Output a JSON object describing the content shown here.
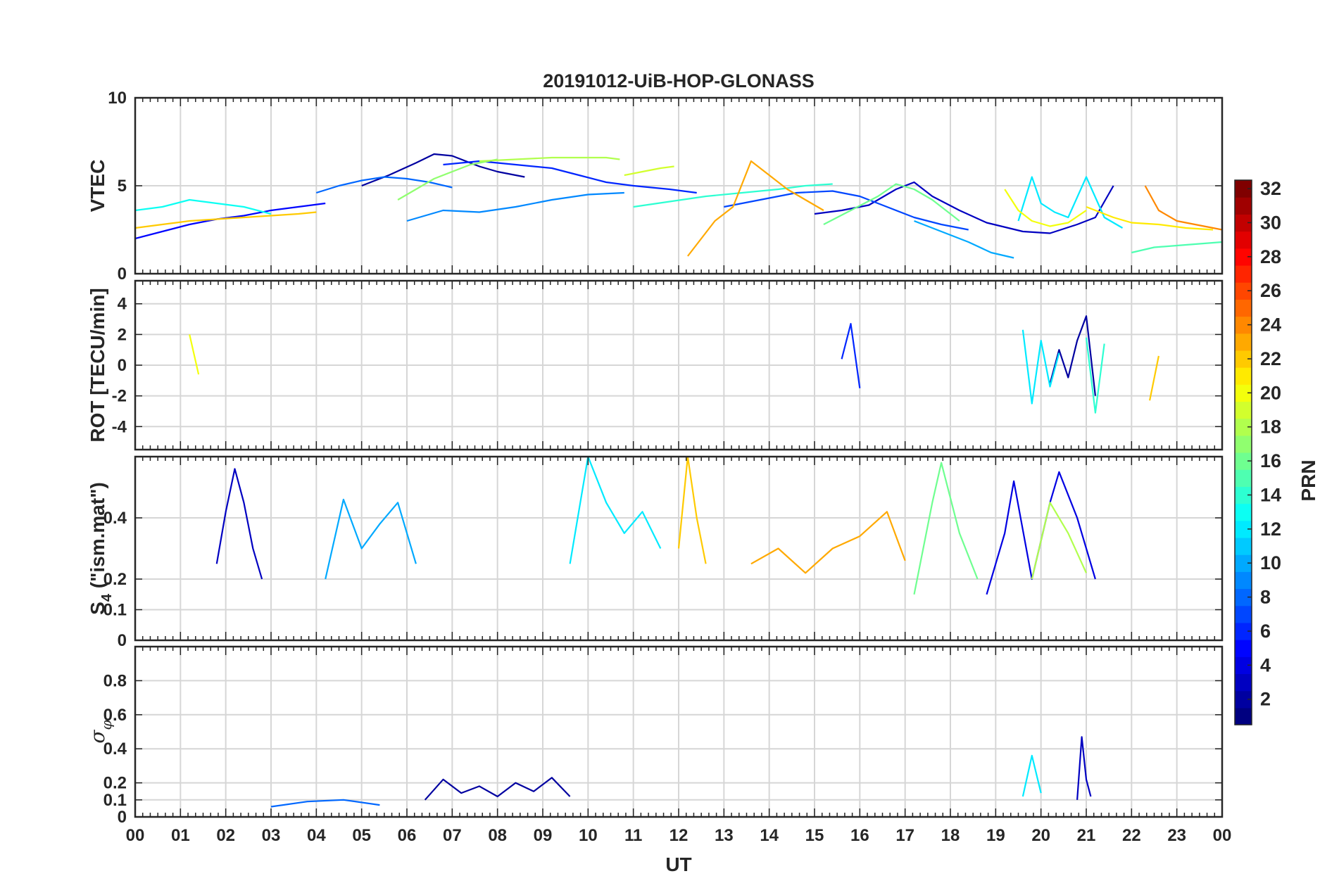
{
  "chart_data": {
    "type": "line",
    "title": "20191012-UiB-HOP-GLONASS",
    "xlabel": "UT",
    "xticks": [
      "00",
      "01",
      "02",
      "03",
      "04",
      "05",
      "06",
      "07",
      "08",
      "09",
      "10",
      "11",
      "12",
      "13",
      "14",
      "15",
      "16",
      "17",
      "18",
      "19",
      "20",
      "21",
      "22",
      "23",
      "00"
    ],
    "xlim": [
      0,
      24
    ],
    "grid": true,
    "legend": "none",
    "note": "Traces are colored by satellite PRN (colorbar, jet colormap). Series values below are approximate readings.",
    "colorbar": {
      "label": "PRN",
      "range": [
        1,
        32
      ],
      "ticks": [
        "2",
        "4",
        "6",
        "8",
        "10",
        "12",
        "14",
        "16",
        "18",
        "20",
        "22",
        "24",
        "26",
        "28",
        "30",
        "32"
      ],
      "colormap": "jet"
    },
    "panels": [
      {
        "name": "vtec",
        "ylabel": "VTEC",
        "ylim": [
          0,
          10
        ],
        "yticks": [
          "0",
          "5",
          "10"
        ],
        "series": [
          {
            "prn": 2,
            "x": [
              5.0,
              5.6,
              6.2,
              6.6,
              7.0,
              7.6,
              8.0,
              8.6
            ],
            "y": [
              5.0,
              5.6,
              6.3,
              6.8,
              6.7,
              6.1,
              5.8,
              5.5
            ]
          },
          {
            "prn": 3,
            "x": [
              15.0,
              15.6,
              16.2,
              16.8,
              17.2,
              17.6,
              18.2,
              18.8,
              19.6,
              20.2,
              20.8,
              21.2,
              21.6
            ],
            "y": [
              3.4,
              3.6,
              3.9,
              4.8,
              5.2,
              4.4,
              3.6,
              2.9,
              2.4,
              2.3,
              2.8,
              3.2,
              5.0
            ]
          },
          {
            "prn": 5,
            "x": [
              0.0,
              0.6,
              1.2,
              1.8,
              2.4,
              3.0,
              3.6,
              4.2
            ],
            "y": [
              2.0,
              2.4,
              2.8,
              3.1,
              3.3,
              3.6,
              3.8,
              4.0
            ]
          },
          {
            "prn": 6,
            "x": [
              6.8,
              7.6,
              8.4,
              9.2,
              9.8,
              10.4,
              11.0,
              11.8,
              12.4
            ],
            "y": [
              6.2,
              6.4,
              6.2,
              6.0,
              5.6,
              5.2,
              5.0,
              4.8,
              4.6
            ]
          },
          {
            "prn": 7,
            "x": [
              13.0,
              13.8,
              14.6,
              15.4,
              16.0,
              16.6,
              17.2,
              17.8,
              18.4
            ],
            "y": [
              3.8,
              4.2,
              4.6,
              4.7,
              4.4,
              3.8,
              3.2,
              2.8,
              2.5
            ]
          },
          {
            "prn": 8,
            "x": [
              4.0,
              4.5,
              5.0,
              5.5,
              6.0,
              6.5,
              7.0
            ],
            "y": [
              4.6,
              5.0,
              5.3,
              5.5,
              5.4,
              5.2,
              4.9
            ]
          },
          {
            "prn": 9,
            "x": [
              6.0,
              6.8,
              7.6,
              8.4,
              9.2,
              10.0,
              10.8
            ],
            "y": [
              3.0,
              3.6,
              3.5,
              3.8,
              4.2,
              4.5,
              4.6
            ]
          },
          {
            "prn": 10,
            "x": [
              17.2,
              17.8,
              18.4,
              18.9,
              19.4
            ],
            "y": [
              3.0,
              2.4,
              1.8,
              1.2,
              0.9
            ]
          },
          {
            "prn": 12,
            "x": [
              19.5,
              19.8,
              20.0,
              20.3,
              20.6,
              21.0,
              21.4,
              21.8
            ],
            "y": [
              3.0,
              5.5,
              4.0,
              3.5,
              3.2,
              5.5,
              3.2,
              2.6
            ]
          },
          {
            "prn": 13,
            "x": [
              0.0,
              0.6,
              1.2,
              1.8,
              2.4,
              3.0
            ],
            "y": [
              3.6,
              3.8,
              4.2,
              4.0,
              3.8,
              3.4
            ]
          },
          {
            "prn": 14,
            "x": [
              11.0,
              11.8,
              12.6,
              13.4,
              14.2,
              14.8,
              15.4
            ],
            "y": [
              3.8,
              4.1,
              4.4,
              4.6,
              4.8,
              5.0,
              5.1
            ]
          },
          {
            "prn": 15,
            "x": [
              22.0,
              22.5,
              23.0,
              23.5,
              24.0
            ],
            "y": [
              1.2,
              1.5,
              1.6,
              1.7,
              1.8
            ]
          },
          {
            "prn": 16,
            "x": [
              15.2,
              15.8,
              16.4,
              16.8,
              17.2,
              17.6,
              18.2
            ],
            "y": [
              2.8,
              3.6,
              4.4,
              5.1,
              4.8,
              4.2,
              3.0
            ]
          },
          {
            "prn": 17,
            "x": [
              5.8,
              6.2,
              6.6,
              7.0,
              7.4,
              8.0
            ],
            "y": [
              4.2,
              4.8,
              5.4,
              5.8,
              6.2,
              6.5
            ]
          },
          {
            "prn": 18,
            "x": [
              7.6,
              8.4,
              9.2,
              9.8,
              10.4,
              10.7
            ],
            "y": [
              6.4,
              6.5,
              6.6,
              6.6,
              6.6,
              6.5
            ]
          },
          {
            "prn": 19,
            "x": [
              10.8,
              11.2,
              11.6,
              11.9
            ],
            "y": [
              5.6,
              5.8,
              6.0,
              6.1
            ]
          },
          {
            "prn": 20,
            "x": [
              19.2,
              19.5,
              19.8,
              20.2,
              20.6,
              21.0
            ],
            "y": [
              4.8,
              3.6,
              3.0,
              2.7,
              2.9,
              3.6
            ]
          },
          {
            "prn": 21,
            "x": [
              21.0,
              21.6,
              22.0,
              22.6,
              23.2,
              23.8
            ],
            "y": [
              3.8,
              3.2,
              2.9,
              2.8,
              2.6,
              2.5
            ]
          },
          {
            "prn": 22,
            "x": [
              0.0,
              0.6,
              1.2,
              1.8,
              2.4,
              3.0,
              3.6,
              4.0
            ],
            "y": [
              2.6,
              2.8,
              3.0,
              3.1,
              3.2,
              3.3,
              3.4,
              3.5
            ]
          },
          {
            "prn": 23,
            "x": [
              12.2,
              12.8,
              13.2,
              13.6,
              14.0,
              14.4,
              14.8,
              15.2
            ],
            "y": [
              1.0,
              3.0,
              3.8,
              6.4,
              5.6,
              4.8,
              4.2,
              3.6
            ]
          },
          {
            "prn": 24,
            "x": [
              22.3,
              22.6,
              23.0,
              23.4,
              23.8,
              24.0
            ],
            "y": [
              5.0,
              3.6,
              3.0,
              2.8,
              2.6,
              2.5
            ]
          }
        ]
      },
      {
        "name": "rot",
        "ylabel": "ROT [TECU/min]",
        "ylim": [
          -5.5,
          5.5
        ],
        "yticks": [
          "-4",
          "-2",
          "0",
          "2",
          "4"
        ],
        "series": [
          {
            "prn": 2,
            "x": [
              20.2,
              20.4,
              20.6,
              20.8,
              21.0,
              21.2
            ],
            "y": [
              -1.2,
              1.0,
              -0.8,
              1.6,
              3.2,
              -2.0
            ]
          },
          {
            "prn": 6,
            "x": [
              15.6,
              15.8,
              16.0
            ],
            "y": [
              0.4,
              2.7,
              -1.5
            ]
          },
          {
            "prn": 12,
            "x": [
              19.6,
              19.8,
              20.0,
              20.2,
              20.4
            ],
            "y": [
              2.3,
              -2.5,
              1.6,
              -1.4,
              0.8
            ]
          },
          {
            "prn": 14,
            "x": [
              21.0,
              21.2,
              21.4
            ],
            "y": [
              1.8,
              -3.1,
              1.4
            ]
          },
          {
            "prn": 22,
            "x": [
              22.4,
              22.6
            ],
            "y": [
              -2.3,
              0.6
            ]
          },
          {
            "prn": 20,
            "x": [
              1.2,
              1.4
            ],
            "y": [
              2.0,
              -0.6
            ]
          }
        ]
      },
      {
        "name": "s4",
        "ylabel": "S4 (\"ism.mat\")",
        "ylabel_main": "S",
        "ylabel_sub": "4",
        "ylabel_rest": " (\"ism.mat\")",
        "ylim": [
          0,
          0.6
        ],
        "yticks": [
          "0",
          "0.1",
          "0.2",
          "0.4"
        ],
        "series": [
          {
            "prn": 3,
            "x": [
              1.8,
              2.0,
              2.2,
              2.4,
              2.6,
              2.8
            ],
            "y": [
              0.25,
              0.42,
              0.56,
              0.45,
              0.3,
              0.2
            ]
          },
          {
            "prn": 4,
            "x": [
              18.8,
              19.2,
              19.4,
              19.8,
              20.2,
              20.4,
              20.8,
              21.2
            ],
            "y": [
              0.15,
              0.35,
              0.52,
              0.2,
              0.45,
              0.55,
              0.4,
              0.2
            ]
          },
          {
            "prn": 10,
            "x": [
              4.2,
              4.6,
              5.0,
              5.4,
              5.8,
              6.2
            ],
            "y": [
              0.2,
              0.46,
              0.3,
              0.38,
              0.45,
              0.25
            ]
          },
          {
            "prn": 12,
            "x": [
              9.6,
              10.0,
              10.4,
              10.8,
              11.2,
              11.6
            ],
            "y": [
              0.25,
              0.6,
              0.45,
              0.35,
              0.42,
              0.3
            ]
          },
          {
            "prn": 16,
            "x": [
              17.2,
              17.6,
              17.8,
              18.2,
              18.6
            ],
            "y": [
              0.15,
              0.45,
              0.58,
              0.35,
              0.2
            ]
          },
          {
            "prn": 22,
            "x": [
              12.0,
              12.2,
              12.4,
              12.6
            ],
            "y": [
              0.3,
              0.6,
              0.4,
              0.25
            ]
          },
          {
            "prn": 23,
            "x": [
              13.6,
              14.2,
              14.8,
              15.4,
              16.0,
              16.6,
              17.0
            ],
            "y": [
              0.25,
              0.3,
              0.22,
              0.3,
              0.34,
              0.42,
              0.26
            ]
          },
          {
            "prn": 18,
            "x": [
              19.8,
              20.2,
              20.6,
              21.0
            ],
            "y": [
              0.2,
              0.45,
              0.35,
              0.22
            ]
          }
        ]
      },
      {
        "name": "sigma_phi",
        "ylabel": "σ φ",
        "ylabel_main": "σ",
        "ylabel_sub": "φ",
        "ylim": [
          0,
          1.0
        ],
        "yticks": [
          "0",
          "0.1",
          "0.2",
          "0.4",
          "0.6",
          "0.8"
        ],
        "series": [
          {
            "prn": 2,
            "x": [
              6.4,
              6.8,
              7.2,
              7.6,
              8.0,
              8.4,
              8.8,
              9.2,
              9.6
            ],
            "y": [
              0.1,
              0.22,
              0.14,
              0.18,
              0.12,
              0.2,
              0.15,
              0.23,
              0.12
            ]
          },
          {
            "prn": 3,
            "x": [
              20.8,
              20.9,
              21.0,
              21.1
            ],
            "y": [
              0.1,
              0.47,
              0.22,
              0.12
            ]
          },
          {
            "prn": 12,
            "x": [
              19.6,
              19.8,
              20.0
            ],
            "y": [
              0.12,
              0.36,
              0.14
            ]
          },
          {
            "prn": 8,
            "x": [
              3.0,
              3.8,
              4.6,
              5.4
            ],
            "y": [
              0.06,
              0.09,
              0.1,
              0.07
            ]
          }
        ]
      }
    ]
  }
}
